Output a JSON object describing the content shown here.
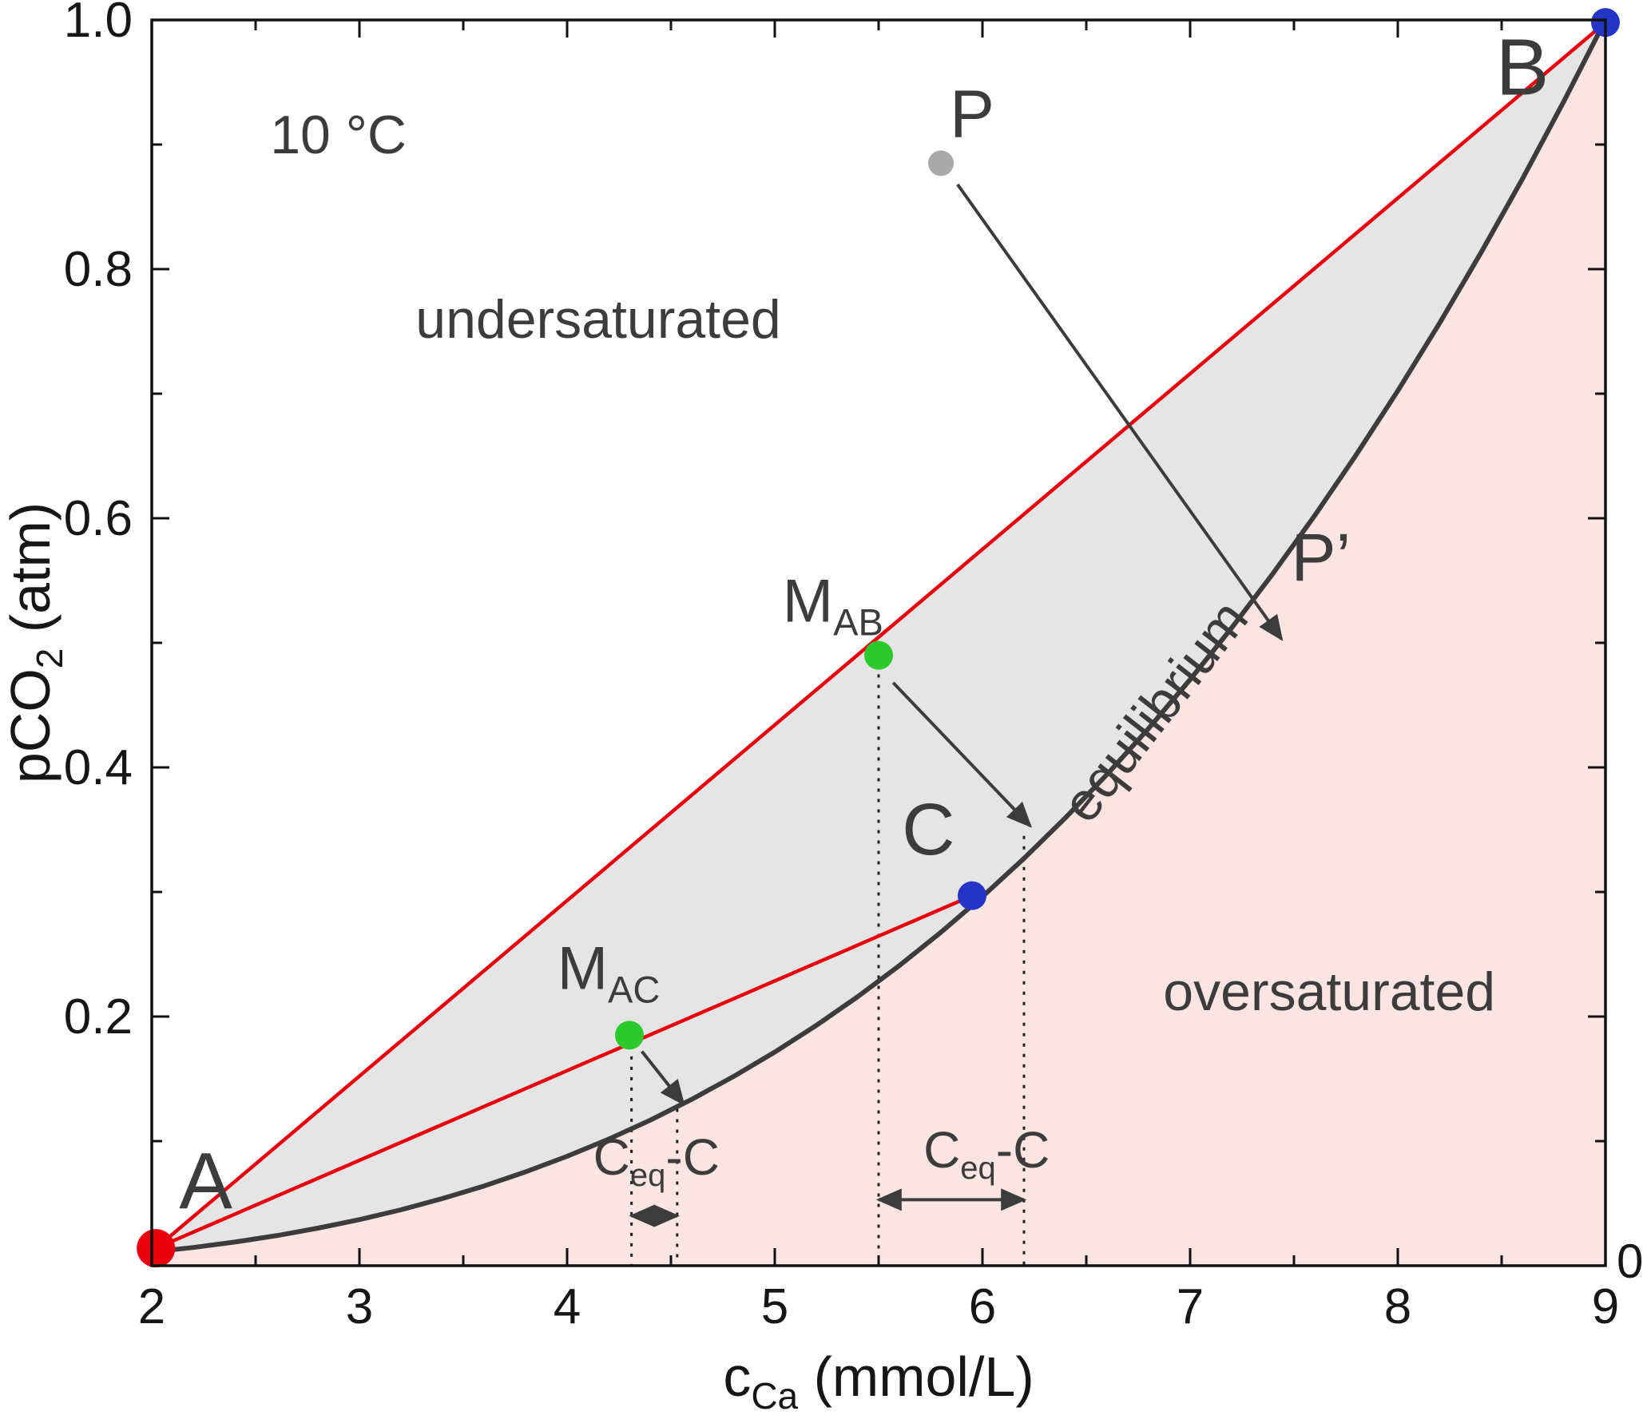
{
  "figure": {
    "axis": {
      "y_label": {
        "pre": "pCO",
        "sub": "2",
        "post": " (atm)"
      },
      "x_label": {
        "pre": "c",
        "sub": "Ca",
        "post": " (mmol/L)"
      },
      "right_zero_label": "0"
    }
  },
  "chart_data": {
    "type": "line",
    "title": "",
    "xlabel": "c_Ca (mmol/L)",
    "ylabel": "pCO2 (atm)",
    "xlim": [
      2,
      9
    ],
    "ylim": [
      0,
      1.0
    ],
    "x_ticks": [
      "2",
      "3",
      "4",
      "5",
      "6",
      "7",
      "8",
      "9"
    ],
    "y_ticks": [
      "0.2",
      "0.4",
      "0.6",
      "0.8",
      "1.0"
    ],
    "x_minor_step": 0.5,
    "y_minor_step": 0.1,
    "colors": {
      "curve": "#3c3c3c",
      "mixing_line": "#e8000d",
      "mixing_fill": "#e5e5e5",
      "oversaturated_fill": "#fae5e2",
      "point_red": "#e8000d",
      "point_blue": "#2334c7",
      "point_green": "#2bc92b",
      "point_gray": "#a9a9a9"
    },
    "equilibrium_curve": {
      "label": "equilibrium",
      "formula": "pCO2 = (c_Ca / 9)^3",
      "points": [
        [
          2.0,
          0.011
        ],
        [
          2.2,
          0.0146
        ],
        [
          2.4,
          0.019
        ],
        [
          2.6,
          0.0241
        ],
        [
          2.8,
          0.0301
        ],
        [
          3.0,
          0.037
        ],
        [
          3.2,
          0.0449
        ],
        [
          3.4,
          0.0539
        ],
        [
          3.6,
          0.064
        ],
        [
          3.8,
          0.0753
        ],
        [
          4.0,
          0.0878
        ],
        [
          4.2,
          0.1016
        ],
        [
          4.4,
          0.1168
        ],
        [
          4.6,
          0.1335
        ],
        [
          4.8,
          0.1517
        ],
        [
          5.0,
          0.1715
        ],
        [
          5.2,
          0.1929
        ],
        [
          5.4,
          0.216
        ],
        [
          5.6,
          0.2409
        ],
        [
          5.8,
          0.2676
        ],
        [
          6.0,
          0.2963
        ],
        [
          6.2,
          0.3269
        ],
        [
          6.4,
          0.3596
        ],
        [
          6.6,
          0.3944
        ],
        [
          6.8,
          0.4313
        ],
        [
          7.0,
          0.4705
        ],
        [
          7.2,
          0.512
        ],
        [
          7.4,
          0.5559
        ],
        [
          7.6,
          0.6022
        ],
        [
          7.8,
          0.651
        ],
        [
          8.0,
          0.7023
        ],
        [
          8.2,
          0.7563
        ],
        [
          8.4,
          0.813
        ],
        [
          8.6,
          0.8724
        ],
        [
          8.8,
          0.9348
        ],
        [
          9.0,
          1.0
        ]
      ]
    },
    "mixing_lines": [
      {
        "name": "A-B",
        "from": [
          2.02,
          0.014
        ],
        "to": [
          9.0,
          0.998
        ],
        "color": "#e8000d"
      },
      {
        "name": "A-C",
        "from": [
          2.02,
          0.014
        ],
        "to": [
          5.95,
          0.297
        ],
        "color": "#e8000d"
      }
    ],
    "points": [
      {
        "label": "A",
        "x": 2.02,
        "y": 0.014,
        "r": 24,
        "color": "#e8000d"
      },
      {
        "label": "B",
        "x": 9.0,
        "y": 0.998,
        "r": 18,
        "color": "#2334c7"
      },
      {
        "label": "C",
        "x": 5.95,
        "y": 0.297,
        "r": 18,
        "color": "#2334c7"
      },
      {
        "label": "MAB",
        "x": 5.5,
        "y": 0.49,
        "r": 18,
        "color": "#2bc92b"
      },
      {
        "label": "MAC",
        "x": 4.3,
        "y": 0.185,
        "r": 18,
        "color": "#2bc92b"
      },
      {
        "label": "P",
        "x": 5.8,
        "y": 0.885,
        "r": 16,
        "color": "#a9a9a9"
      }
    ],
    "arrows": [
      {
        "from": [
          5.88,
          0.868
        ],
        "to": [
          7.44,
          0.503
        ],
        "double": false
      },
      {
        "from": [
          5.57,
          0.468
        ],
        "to": [
          6.23,
          0.353
        ],
        "double": false
      },
      {
        "from": [
          4.36,
          0.172
        ],
        "to": [
          4.56,
          0.13
        ],
        "double": false
      },
      {
        "from": [
          5.5,
          0.053
        ],
        "to": [
          6.2,
          0.053
        ],
        "double": true
      },
      {
        "from": [
          4.31,
          0.04
        ],
        "to": [
          4.53,
          0.04
        ],
        "double": true
      }
    ],
    "dotted_verticals": [
      {
        "x": 5.5,
        "y1": 0.483,
        "y2": 0.0
      },
      {
        "x": 6.2,
        "y1": 0.345,
        "y2": 0.0
      },
      {
        "x": 4.31,
        "y1": 0.168,
        "y2": 0.0
      },
      {
        "x": 4.53,
        "y1": 0.126,
        "y2": 0.0
      }
    ],
    "annotations": [
      {
        "text": "10 °C",
        "x": 2.57,
        "y": 0.893,
        "size": 68,
        "anchor": "start"
      },
      {
        "text": "undersaturated",
        "x": 4.15,
        "y": 0.745,
        "size": 68,
        "anchor": "middle"
      },
      {
        "text": "oversaturated",
        "x": 7.67,
        "y": 0.205,
        "size": 68,
        "anchor": "middle"
      },
      {
        "text": "equilibrium",
        "x": 6.9,
        "y": 0.436,
        "size": 68,
        "anchor": "middle",
        "rotate": -52
      },
      {
        "text": "A",
        "x": 2.26,
        "y": 0.046,
        "size": 100,
        "anchor": "middle"
      },
      {
        "text": "B",
        "x": 8.6,
        "y": 0.94,
        "size": 100,
        "anchor": "middle"
      },
      {
        "text": "C",
        "x": 5.74,
        "y": 0.33,
        "size": 92,
        "anchor": "middle"
      },
      {
        "text": "P",
        "x": 5.95,
        "y": 0.906,
        "size": 84,
        "anchor": "middle"
      },
      {
        "text": "P’",
        "x": 7.63,
        "y": 0.55,
        "size": 84,
        "anchor": "middle"
      }
    ],
    "sub_annotations": [
      {
        "pre": "M",
        "sub": "AB",
        "post": "",
        "x": 5.28,
        "y": 0.517,
        "size": 76,
        "anchor": "middle"
      },
      {
        "pre": "M",
        "sub": "AC",
        "post": "",
        "x": 4.2,
        "y": 0.222,
        "size": 76,
        "anchor": "middle"
      },
      {
        "pre": "C",
        "sub": "eq",
        "post": "-C",
        "x": 6.02,
        "y": 0.079,
        "size": 64,
        "anchor": "middle"
      },
      {
        "pre": "C",
        "sub": "eq",
        "post": "-C",
        "x": 4.43,
        "y": 0.073,
        "size": 64,
        "anchor": "middle"
      }
    ]
  }
}
